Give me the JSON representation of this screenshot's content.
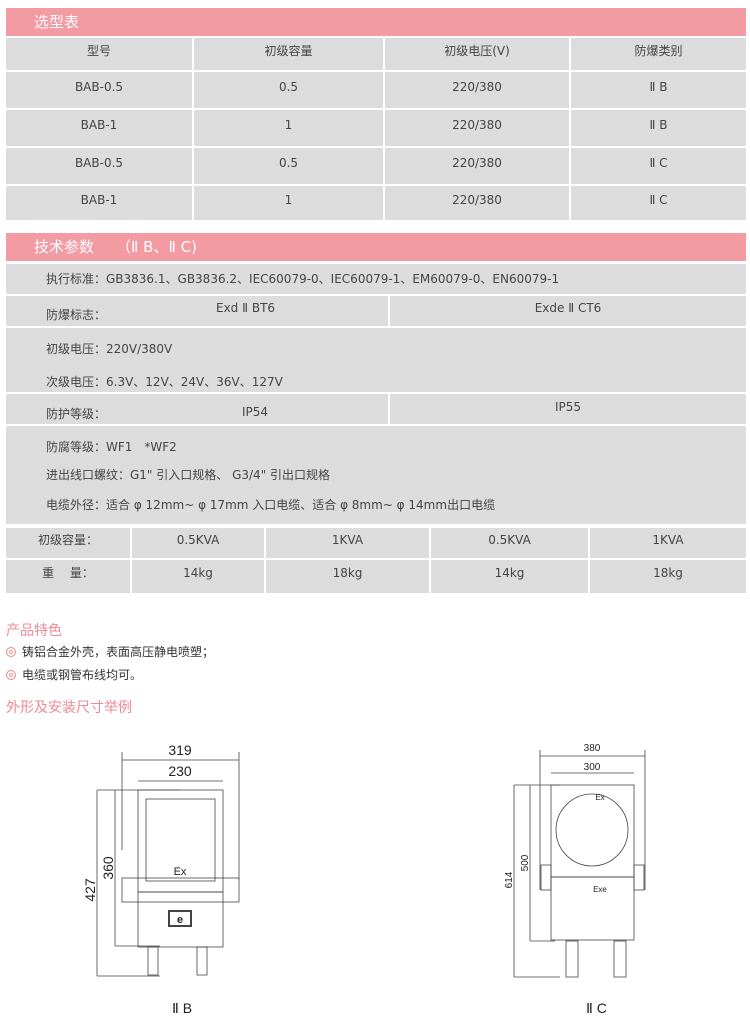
{
  "selection": {
    "title": "选型表",
    "headers": [
      "型号",
      "初级容量",
      "初级电压(V)",
      "防爆类别"
    ],
    "rows": [
      [
        "BAB-0.5",
        "0.5",
        "220/380",
        "Ⅱ B"
      ],
      [
        "BAB-1",
        "1",
        "220/380",
        "Ⅱ B"
      ],
      [
        "BAB-0.5",
        "0.5",
        "220/380",
        "Ⅱ C"
      ],
      [
        "BAB-1",
        "1",
        "220/380",
        "Ⅱ C"
      ]
    ]
  },
  "tech": {
    "title": "技术参数",
    "subtitle": "（Ⅱ B、Ⅱ C)",
    "standard": "执行标准：GB3836.1、GB3836.2、IEC60079-0、IEC60079-1、EM60079-0、EN60079-1",
    "ex_label": "防爆标志：",
    "ex_b": "Exd Ⅱ BT6",
    "ex_c": "Exde Ⅱ CT6",
    "primary_voltage": "初级电压：220V/380V",
    "secondary_voltage": "次级电压：6.3V、12V、24V、36V、127V",
    "ip_label": "防护等级：",
    "ip_b": "IP54",
    "ip_c": "IP55",
    "corrosion": "防腐等级：WF1　*WF2",
    "thread": "进出线口螺纹：G1\" 引入口规格、 G3/4\" 引出口规格",
    "cable": "电缆外径：适合 φ 12mm~ φ 17mm 入口电缆、适合 φ 8mm~ φ 14mm出口电缆",
    "capacity_label": "初级容量：",
    "capacities": [
      "0.5KVA",
      "1KVA",
      "0.5KVA",
      "1KVA"
    ],
    "weight_label": "重　 量：",
    "weights": [
      "14kg",
      "18kg",
      "14kg",
      "18kg"
    ]
  },
  "features": {
    "title": "产品特色",
    "items": [
      "铸铝合金外壳，表面高压静电喷塑；",
      "电缆或钢管布线均可。"
    ]
  },
  "dimensions": {
    "title": "外形及安装尺寸举例",
    "b": {
      "label": "Ⅱ B",
      "width_outer": "319",
      "width_inner": "230",
      "height_outer": "427",
      "height_inner": "360",
      "mark": "Ex",
      "badge": "e"
    },
    "c": {
      "label": "Ⅱ C",
      "width_outer": "380",
      "width_inner": "300",
      "height_outer": "614",
      "height_inner": "500",
      "mark_top": "Ex",
      "mark_bottom": "Exe"
    }
  },
  "colors": {
    "accent": "#f29ba3",
    "cell": "#dcdcdc",
    "heading": "#f08a95"
  }
}
